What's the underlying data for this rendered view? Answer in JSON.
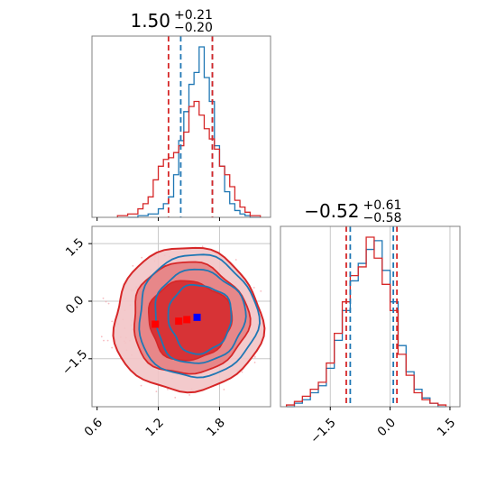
{
  "colors": {
    "blue": "#1f77b4",
    "red": "#d62728",
    "marker_blue": "#0000ff",
    "marker_red": "#ff0000",
    "frame": "#808080",
    "grid": "#c8c8c8"
  },
  "chart_data": [
    {
      "type": "histogram",
      "panel": "top-left",
      "title_value": "1.50",
      "title_upper": "+0.21",
      "title_lower": "−0.20",
      "xlim": [
        0.55,
        2.3
      ],
      "quantile_lines": {
        "blue": [
          1.42,
          1.73
        ],
        "red": [
          1.3,
          1.73
        ]
      },
      "blue_bins": [
        0.9,
        1.0,
        1.1,
        1.2,
        1.25,
        1.3,
        1.35,
        1.4,
        1.45,
        1.5,
        1.55,
        1.6,
        1.65,
        1.7,
        1.75,
        1.8,
        1.85,
        1.9,
        1.95,
        2.0,
        2.05,
        2.1
      ],
      "blue_heights": [
        0,
        0.01,
        0.02,
        0.05,
        0.08,
        0.12,
        0.25,
        0.45,
        0.62,
        0.78,
        0.85,
        1.0,
        0.82,
        0.68,
        0.42,
        0.3,
        0.15,
        0.08,
        0.04,
        0.02,
        0.01,
        0
      ],
      "red_bins": [
        0.8,
        0.9,
        1.0,
        1.05,
        1.1,
        1.15,
        1.2,
        1.25,
        1.3,
        1.35,
        1.4,
        1.45,
        1.5,
        1.55,
        1.6,
        1.65,
        1.7,
        1.75,
        1.8,
        1.85,
        1.9,
        1.95,
        2.0,
        2.05,
        2.1
      ],
      "red_heights": [
        0.01,
        0.02,
        0.05,
        0.08,
        0.12,
        0.22,
        0.3,
        0.34,
        0.35,
        0.38,
        0.42,
        0.5,
        0.65,
        0.68,
        0.6,
        0.52,
        0.46,
        0.4,
        0.3,
        0.25,
        0.18,
        0.1,
        0.06,
        0.03,
        0.01
      ]
    },
    {
      "type": "contour",
      "panel": "bottom-left",
      "xlim": [
        0.55,
        2.3
      ],
      "ylim": [
        -2.75,
        1.95
      ],
      "xticks": [
        "0.6",
        "1.2",
        "1.8"
      ],
      "xtick_values": [
        0.6,
        1.2,
        1.8
      ],
      "yticks": [
        "1.5",
        "0.0",
        "−1.5"
      ],
      "ytick_values": [
        1.5,
        0.0,
        -1.5
      ],
      "grid_x": [
        1.2,
        1.8
      ],
      "grid_y": [
        1.5,
        0.0,
        -1.5
      ],
      "blue_center": [
        1.58,
        -0.4
      ],
      "red_center": [
        1.45,
        -0.5
      ],
      "blue_marker": [
        1.58,
        -0.42
      ],
      "red_markers": [
        [
          1.17,
          -0.6
        ],
        [
          1.4,
          -0.52
        ],
        [
          1.48,
          -0.48
        ]
      ]
    },
    {
      "type": "histogram",
      "panel": "bottom-right",
      "title_value": "−0.52",
      "title_upper": "+0.61",
      "title_lower": "−0.58",
      "xlim": [
        -2.75,
        1.75
      ],
      "xticks": [
        "−1.5",
        "0.0",
        "1.5"
      ],
      "xtick_values": [
        -1.5,
        0.0,
        1.5
      ],
      "grid_x": [
        -1.5,
        0.0,
        1.5
      ],
      "quantile_lines": {
        "blue": [
          -1.0,
          0.08
        ],
        "red": [
          -1.1,
          0.17
        ]
      },
      "blue_bins": [
        -2.6,
        -2.4,
        -2.2,
        -2.0,
        -1.8,
        -1.6,
        -1.4,
        -1.2,
        -1.0,
        -0.8,
        -0.6,
        -0.4,
        -0.2,
        0.0,
        0.2,
        0.4,
        0.6,
        0.8,
        1.0,
        1.2
      ],
      "blue_heights": [
        0,
        0.02,
        0.04,
        0.08,
        0.12,
        0.22,
        0.38,
        0.55,
        0.72,
        0.82,
        0.9,
        0.95,
        0.78,
        0.6,
        0.35,
        0.2,
        0.1,
        0.05,
        0.02,
        0
      ],
      "red_bins": [
        -2.6,
        -2.4,
        -2.2,
        -2.0,
        -1.8,
        -1.6,
        -1.4,
        -1.2,
        -1.0,
        -0.8,
        -0.6,
        -0.4,
        -0.2,
        0.0,
        0.2,
        0.4,
        0.6,
        0.8,
        1.0,
        1.2
      ],
      "red_heights": [
        0.01,
        0.03,
        0.06,
        0.1,
        0.14,
        0.25,
        0.42,
        0.6,
        0.75,
        0.8,
        0.97,
        0.85,
        0.7,
        0.55,
        0.3,
        0.18,
        0.08,
        0.04,
        0.02,
        0.01
      ]
    }
  ]
}
